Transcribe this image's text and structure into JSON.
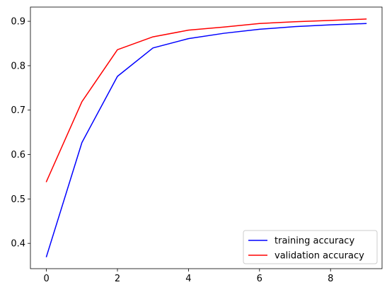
{
  "chart_data": {
    "type": "line",
    "title": "",
    "xlabel": "",
    "ylabel": "",
    "xlim": [
      -0.45,
      9.45
    ],
    "ylim": [
      0.343,
      0.932
    ],
    "xticks": [
      0,
      2,
      4,
      6,
      8
    ],
    "xtick_labels": [
      "0",
      "2",
      "4",
      "6",
      "8"
    ],
    "yticks": [
      0.4,
      0.5,
      0.6,
      0.7,
      0.8,
      0.9
    ],
    "ytick_labels": [
      "0.4",
      "0.5",
      "0.6",
      "0.7",
      "0.8",
      "0.9"
    ],
    "grid": false,
    "legend_position": "lower-right",
    "x": [
      0,
      1,
      2,
      3,
      4,
      5,
      6,
      7,
      8,
      9
    ],
    "series": [
      {
        "name": "training accuracy",
        "color": "#0000ff",
        "values": [
          0.37,
          0.627,
          0.776,
          0.84,
          0.861,
          0.873,
          0.882,
          0.888,
          0.892,
          0.895
        ]
      },
      {
        "name": "validation accuracy",
        "color": "#ff0000",
        "values": [
          0.539,
          0.719,
          0.836,
          0.865,
          0.88,
          0.887,
          0.895,
          0.899,
          0.902,
          0.905
        ]
      }
    ]
  }
}
